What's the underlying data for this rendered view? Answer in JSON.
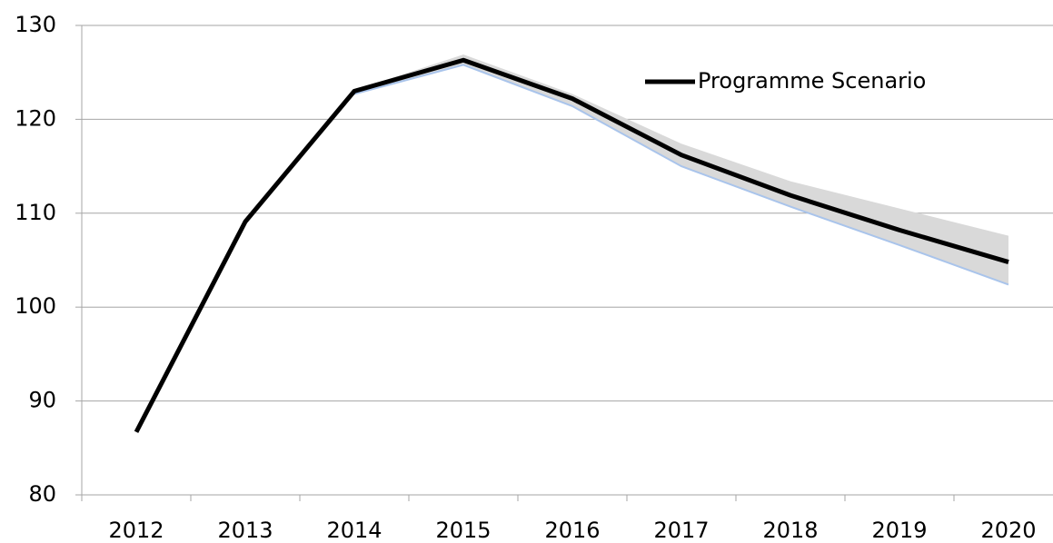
{
  "chart_data": {
    "type": "line",
    "categories": [
      "2012",
      "2013",
      "2014",
      "2015",
      "2016",
      "2017",
      "2018",
      "2019",
      "2020"
    ],
    "series": [
      {
        "name": "Programme Scenario",
        "color": "#000000",
        "values": [
          86.7,
          109.1,
          123,
          126.3,
          122.2,
          116.2,
          111.9,
          108.2,
          104.8
        ]
      }
    ],
    "band": {
      "color": "#d9d9d9",
      "edge_color": "#a9c4eb",
      "lower": [
        null,
        null,
        122.7,
        125.8,
        121.4,
        115,
        110.7,
        106.6,
        102.4
      ],
      "upper": [
        null,
        null,
        123.1,
        126.9,
        122.7,
        117.4,
        113.4,
        110.5,
        107.6
      ]
    },
    "ylim": [
      80,
      130
    ],
    "yticks": [
      80,
      90,
      100,
      110,
      120,
      130
    ],
    "grid": true,
    "legend": "top-right"
  }
}
